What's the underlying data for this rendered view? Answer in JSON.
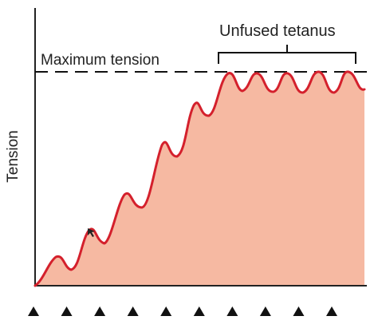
{
  "labels": {
    "y_axis": "Tension",
    "max_line": "Maximum tension",
    "bracket": "Unfused tetanus"
  },
  "stimuli": {
    "count": 10,
    "glyph": "▲"
  },
  "colors": {
    "curve": "#d4202c",
    "fill": "#f6b9a2",
    "axis": "#222222",
    "dashed": "#111111",
    "markers": "#111111",
    "background": "#ffffff"
  }
}
